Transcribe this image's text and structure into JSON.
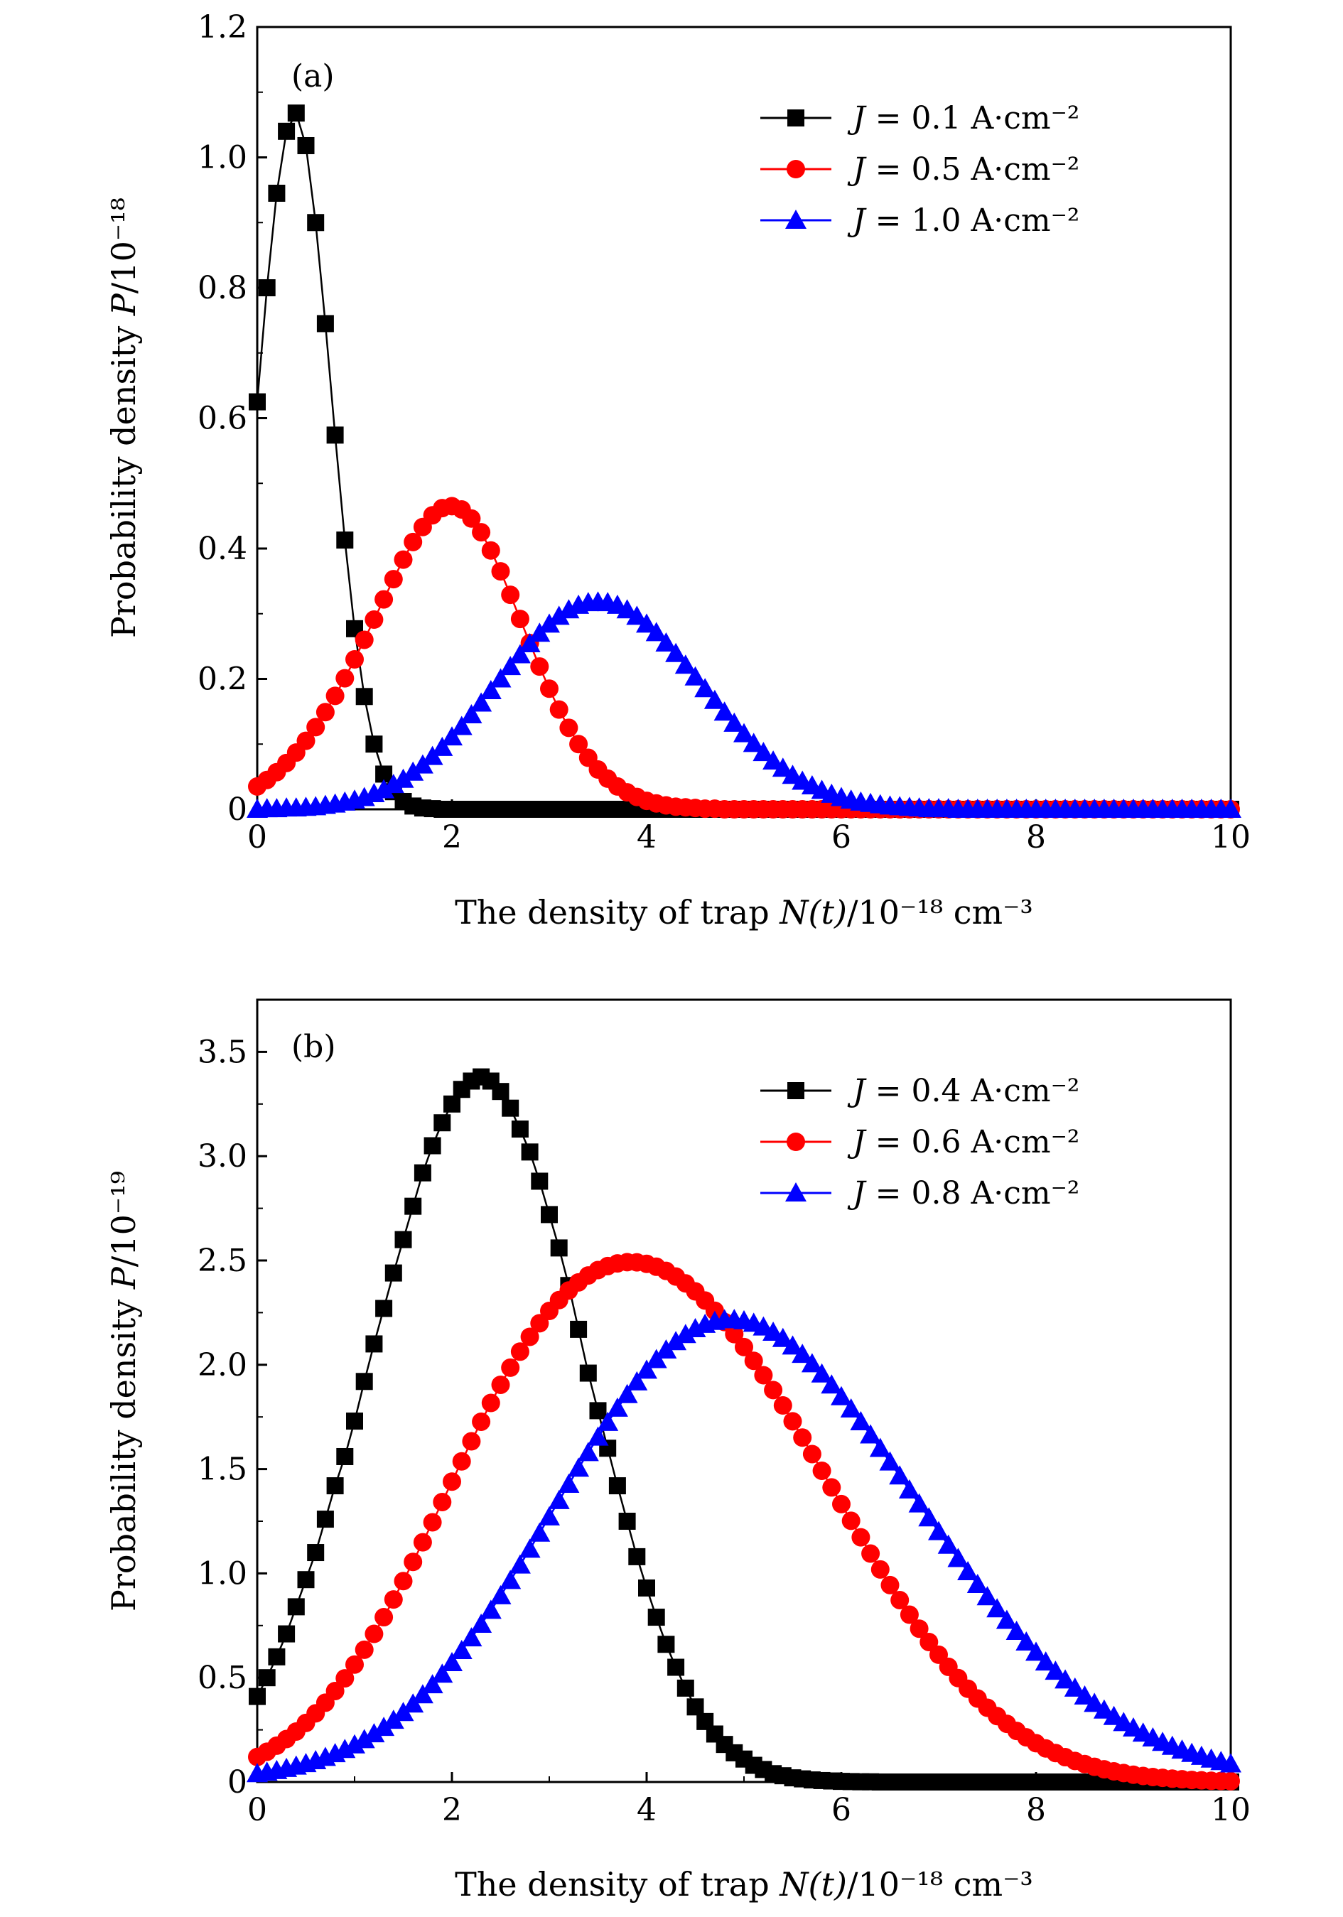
{
  "chart_data": [
    {
      "type": "line",
      "panel_label": "(a)",
      "xlabel_prefix": "The density of trap ",
      "xlabel_var": "N(t)",
      "xlabel_unit": "/10⁻¹⁸ cm⁻³",
      "ylabel_prefix": "Probability density ",
      "ylabel_var": "P",
      "ylabel_unit": "/10⁻¹⁸",
      "xlim": [
        0,
        10
      ],
      "ylim": [
        0,
        1.2
      ],
      "xticks": [
        0,
        2,
        4,
        6,
        8,
        10
      ],
      "xtick_labels": [
        "0",
        "2",
        "4",
        "6",
        "8",
        "10"
      ],
      "yticks": [
        0,
        0.2,
        0.4,
        0.6,
        0.8,
        1.0,
        1.2
      ],
      "ytick_labels": [
        "0",
        "0.2",
        "0.4",
        "0.6",
        "0.8",
        "1.0",
        "1.2"
      ],
      "legend_position": "top-right",
      "x_step": 0.1,
      "series": [
        {
          "name": "J = 0.1 A·cm⁻²",
          "legend_j": "J",
          "legend_value": " = 0.1 A·cm⁻²",
          "color": "#000000",
          "marker": "square",
          "values": [
            0.625,
            0.8,
            0.945,
            1.04,
            1.068,
            1.018,
            0.9,
            0.745,
            0.574,
            0.413,
            0.277,
            0.173,
            0.1,
            0.054,
            0.027,
            0.012,
            0.005,
            0.002,
            0.001,
            0,
            0,
            0,
            0,
            0,
            0,
            0,
            0,
            0,
            0,
            0,
            0,
            0,
            0,
            0,
            0,
            0,
            0,
            0,
            0,
            0,
            0,
            0,
            0,
            0,
            0,
            0,
            0,
            0,
            0,
            0,
            0,
            0,
            0,
            0,
            0,
            0,
            0,
            0,
            0,
            0,
            0,
            0,
            0,
            0,
            0,
            0,
            0,
            0,
            0,
            0,
            0,
            0,
            0,
            0,
            0,
            0,
            0,
            0,
            0,
            0,
            0,
            0,
            0,
            0,
            0,
            0,
            0,
            0,
            0,
            0,
            0,
            0,
            0,
            0,
            0,
            0,
            0,
            0,
            0,
            0,
            0
          ]
        },
        {
          "name": "J = 0.5 A·cm⁻²",
          "legend_j": "J",
          "legend_value": " = 0.5 A·cm⁻²",
          "color": "#ff0000",
          "marker": "circle",
          "values": [
            0.035,
            0.045,
            0.057,
            0.071,
            0.087,
            0.105,
            0.126,
            0.149,
            0.174,
            0.201,
            0.23,
            0.26,
            0.291,
            0.322,
            0.353,
            0.383,
            0.41,
            0.433,
            0.451,
            0.462,
            0.465,
            0.46,
            0.446,
            0.425,
            0.397,
            0.365,
            0.329,
            0.292,
            0.255,
            0.219,
            0.185,
            0.153,
            0.125,
            0.1,
            0.079,
            0.061,
            0.047,
            0.035,
            0.026,
            0.019,
            0.013,
            0.009,
            0.006,
            0.004,
            0.003,
            0.002,
            0.001,
            0.001,
            0,
            0,
            0,
            0,
            0,
            0,
            0,
            0,
            0,
            0,
            0,
            0,
            0,
            0,
            0,
            0,
            0,
            0,
            0,
            0,
            0,
            0,
            0,
            0,
            0,
            0,
            0,
            0,
            0,
            0,
            0,
            0,
            0,
            0,
            0,
            0,
            0,
            0,
            0,
            0,
            0,
            0,
            0,
            0,
            0,
            0,
            0,
            0,
            0,
            0,
            0,
            0,
            0
          ]
        },
        {
          "name": "J = 1.0 A·cm⁻²",
          "legend_j": "J",
          "legend_value": " = 1.0 A·cm⁻²",
          "color": "#0000ff",
          "marker": "triangle",
          "values": [
            0,
            0.001,
            0.001,
            0.002,
            0.002,
            0.003,
            0.004,
            0.006,
            0.008,
            0.011,
            0.014,
            0.018,
            0.024,
            0.03,
            0.038,
            0.046,
            0.057,
            0.068,
            0.081,
            0.095,
            0.111,
            0.127,
            0.145,
            0.163,
            0.182,
            0.2,
            0.219,
            0.237,
            0.254,
            0.27,
            0.284,
            0.296,
            0.306,
            0.313,
            0.317,
            0.318,
            0.317,
            0.313,
            0.306,
            0.296,
            0.284,
            0.271,
            0.255,
            0.239,
            0.221,
            0.203,
            0.185,
            0.167,
            0.149,
            0.132,
            0.116,
            0.101,
            0.087,
            0.074,
            0.063,
            0.052,
            0.043,
            0.036,
            0.029,
            0.023,
            0.018,
            0.014,
            0.011,
            0.009,
            0.007,
            0.005,
            0.004,
            0.003,
            0.002,
            0.001,
            0.001,
            0.001,
            0,
            0,
            0,
            0,
            0,
            0,
            0,
            0,
            0,
            0,
            0,
            0,
            0,
            0,
            0,
            0,
            0,
            0,
            0,
            0,
            0,
            0,
            0,
            0,
            0,
            0,
            0,
            0,
            0
          ]
        }
      ]
    },
    {
      "type": "line",
      "panel_label": "(b)",
      "xlabel_prefix": "The density of trap ",
      "xlabel_var": "N(t)",
      "xlabel_unit": "/10⁻¹⁸ cm⁻³",
      "ylabel_prefix": "Probability density ",
      "ylabel_var": "P",
      "ylabel_unit": "/10⁻¹⁹",
      "xlim": [
        0,
        10
      ],
      "ylim": [
        0,
        3.75
      ],
      "xticks": [
        0,
        2,
        4,
        6,
        8,
        10
      ],
      "xtick_labels": [
        "0",
        "2",
        "4",
        "6",
        "8",
        "10"
      ],
      "yticks": [
        0,
        0.5,
        1.0,
        1.5,
        2.0,
        2.5,
        3.0,
        3.5
      ],
      "ytick_labels": [
        "0",
        "0.5",
        "1.0",
        "1.5",
        "2.0",
        "2.5",
        "3.0",
        "3.5"
      ],
      "legend_position": "top-right",
      "x_step": 0.1,
      "series": [
        {
          "name": "J = 0.4 A·cm⁻²",
          "legend_j": "J",
          "legend_value": " = 0.4 A·cm⁻²",
          "color": "#000000",
          "marker": "square",
          "values": [
            0.41,
            0.5,
            0.6,
            0.71,
            0.84,
            0.97,
            1.1,
            1.26,
            1.42,
            1.56,
            1.73,
            1.92,
            2.1,
            2.27,
            2.44,
            2.6,
            2.76,
            2.92,
            3.05,
            3.16,
            3.25,
            3.32,
            3.36,
            3.38,
            3.36,
            3.31,
            3.23,
            3.13,
            3.02,
            2.88,
            2.72,
            2.56,
            2.38,
            2.17,
            1.96,
            1.78,
            1.6,
            1.42,
            1.25,
            1.08,
            0.93,
            0.79,
            0.66,
            0.55,
            0.45,
            0.36,
            0.29,
            0.23,
            0.18,
            0.14,
            0.11,
            0.08,
            0.06,
            0.04,
            0.03,
            0.02,
            0.015,
            0.01,
            0.007,
            0.005,
            0.003,
            0.002,
            0.001,
            0.001,
            0,
            0,
            0,
            0,
            0,
            0,
            0,
            0,
            0,
            0,
            0,
            0,
            0,
            0,
            0,
            0,
            0,
            0,
            0,
            0,
            0,
            0,
            0,
            0,
            0,
            0,
            0,
            0,
            0,
            0,
            0,
            0,
            0,
            0,
            0,
            0,
            0
          ]
        },
        {
          "name": "J = 0.6 A·cm⁻²",
          "legend_j": "J",
          "legend_value": " = 0.6 A·cm⁻²",
          "color": "#ff0000",
          "marker": "circle",
          "values": [
            0.12,
            0.145,
            0.174,
            0.206,
            0.242,
            0.283,
            0.329,
            0.38,
            0.436,
            0.497,
            0.563,
            0.634,
            0.71,
            0.79,
            0.875,
            0.963,
            1.055,
            1.149,
            1.245,
            1.342,
            1.44,
            1.537,
            1.633,
            1.727,
            1.817,
            1.904,
            1.986,
            2.063,
            2.134,
            2.199,
            2.258,
            2.31,
            2.356,
            2.395,
            2.428,
            2.454,
            2.473,
            2.486,
            2.492,
            2.491,
            2.484,
            2.47,
            2.45,
            2.423,
            2.39,
            2.352,
            2.308,
            2.259,
            2.205,
            2.147,
            2.085,
            2.019,
            1.95,
            1.879,
            1.805,
            1.729,
            1.651,
            1.572,
            1.492,
            1.412,
            1.332,
            1.252,
            1.173,
            1.095,
            1.019,
            0.944,
            0.872,
            0.802,
            0.735,
            0.671,
            0.61,
            0.552,
            0.498,
            0.447,
            0.4,
            0.356,
            0.316,
            0.279,
            0.245,
            0.214,
            0.186,
            0.161,
            0.139,
            0.119,
            0.101,
            0.086,
            0.073,
            0.061,
            0.051,
            0.043,
            0.035,
            0.029,
            0.024,
            0.02,
            0.016,
            0.013,
            0.01,
            0.008,
            0.006,
            0.005,
            0.004
          ]
        },
        {
          "name": "J = 0.8 A·cm⁻²",
          "legend_j": "J",
          "legend_value": " = 0.8 A·cm⁻²",
          "color": "#0000ff",
          "marker": "triangle",
          "values": [
            0.04,
            0.047,
            0.055,
            0.065,
            0.076,
            0.088,
            0.102,
            0.118,
            0.136,
            0.156,
            0.178,
            0.203,
            0.231,
            0.262,
            0.296,
            0.333,
            0.374,
            0.418,
            0.466,
            0.517,
            0.572,
            0.63,
            0.691,
            0.756,
            0.823,
            0.893,
            0.966,
            1.04,
            1.116,
            1.193,
            1.271,
            1.349,
            1.427,
            1.504,
            1.579,
            1.653,
            1.724,
            1.792,
            1.857,
            1.918,
            1.974,
            2.025,
            2.071,
            2.111,
            2.145,
            2.173,
            2.194,
            2.208,
            2.216,
            2.217,
            2.211,
            2.199,
            2.181,
            2.156,
            2.126,
            2.09,
            2.05,
            2.005,
            1.956,
            1.903,
            1.847,
            1.788,
            1.727,
            1.664,
            1.599,
            1.534,
            1.467,
            1.4,
            1.333,
            1.266,
            1.2,
            1.135,
            1.071,
            1.008,
            0.947,
            0.888,
            0.83,
            0.775,
            0.722,
            0.671,
            0.622,
            0.575,
            0.531,
            0.489,
            0.45,
            0.412,
            0.377,
            0.345,
            0.314,
            0.285,
            0.259,
            0.234,
            0.211,
            0.19,
            0.171,
            0.153,
            0.137,
            0.123,
            0.11,
            0.098,
            0.087
          ]
        }
      ]
    }
  ]
}
